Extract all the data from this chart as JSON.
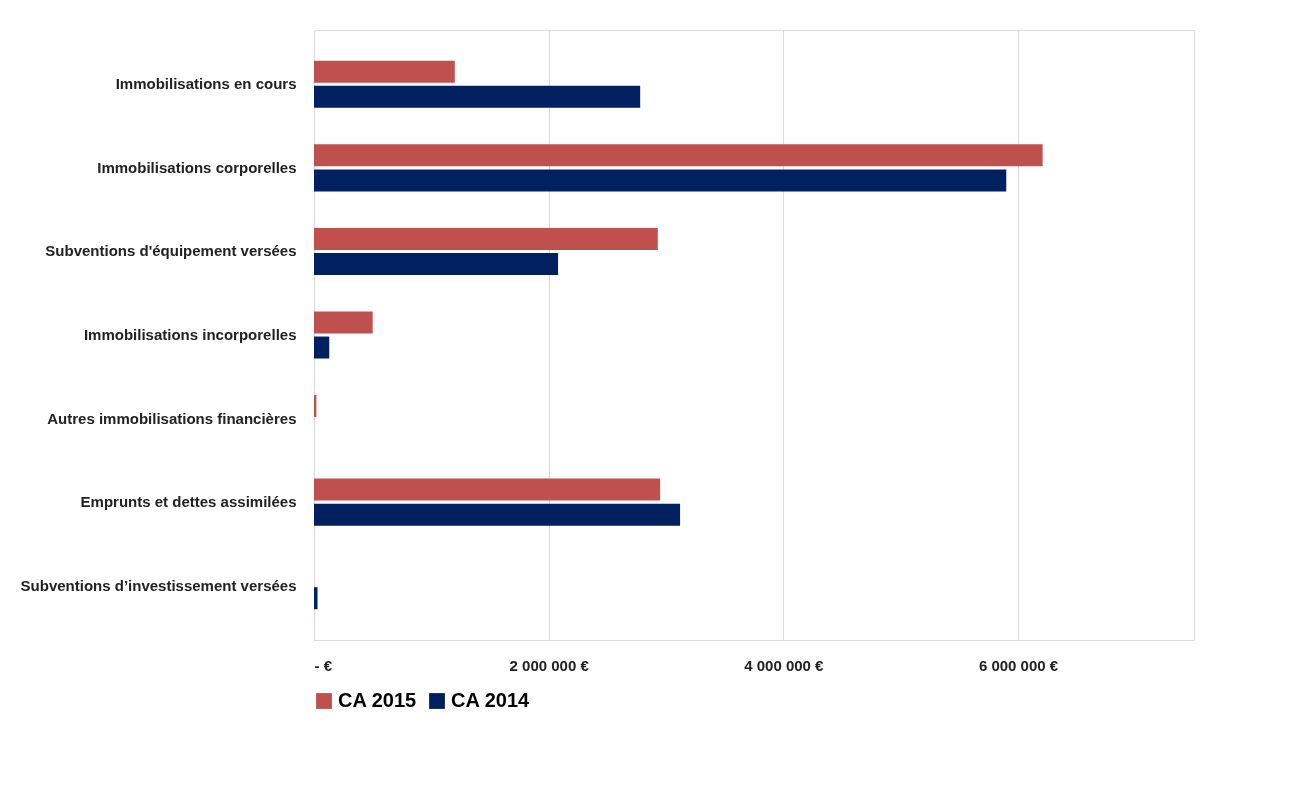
{
  "chart_data": {
    "type": "bar",
    "orientation": "horizontal",
    "categories": [
      "Immobilisations en cours",
      "Immobilisations corporelles",
      "Subventions d'équipement versées",
      "Immobilisations incorporelles",
      "Autres immobilisations financières",
      "Emprunts et dettes assimilées",
      "Subventions d’investissement versées"
    ],
    "series": [
      {
        "name": "CA 2015",
        "color": "#c0504d",
        "values": [
          1200000,
          6210000,
          2930000,
          500000,
          20000,
          2950000,
          0
        ]
      },
      {
        "name": "CA 2014",
        "color": "#002060",
        "values": [
          2780000,
          5900000,
          2080000,
          130000,
          0,
          3120000,
          30000
        ]
      }
    ],
    "xlim": [
      0,
      7500000
    ],
    "xticks": [
      {
        "value": 0,
        "label": "-  €"
      },
      {
        "value": 2000000,
        "label": "2 000 000 €"
      },
      {
        "value": 4000000,
        "label": "4 000 000 €"
      },
      {
        "value": 6000000,
        "label": "6 000 000 €"
      }
    ],
    "grid": "x",
    "legend": "bottom"
  }
}
